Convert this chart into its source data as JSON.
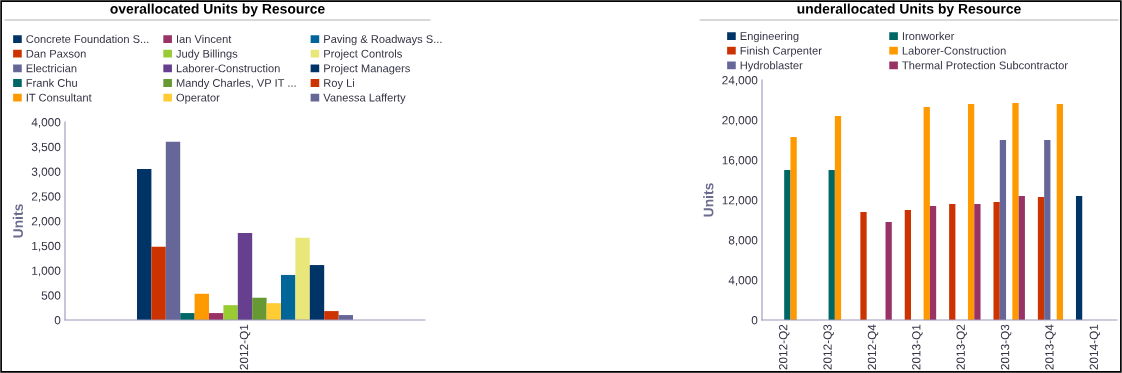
{
  "chart_data": [
    {
      "type": "bar",
      "title": "overallocated Units by Resource",
      "ylabel": "Units",
      "categories": [
        "2012-Q1"
      ],
      "ylim": [
        0,
        4000
      ],
      "yticks": [
        {
          "value": 0,
          "label": "0"
        },
        {
          "value": 500,
          "label": "500"
        },
        {
          "value": 1000,
          "label": "1,000"
        },
        {
          "value": 1500,
          "label": "1,500"
        },
        {
          "value": 2000,
          "label": "2,000"
        },
        {
          "value": 2500,
          "label": "2,500"
        },
        {
          "value": 3000,
          "label": "3,000"
        },
        {
          "value": 3500,
          "label": "3,500"
        },
        {
          "value": 4000,
          "label": "4,000"
        }
      ],
      "grid": false,
      "legend": "top",
      "series": [
        {
          "name": "Concrete Foundation S...",
          "color": "#003366",
          "values": [
            3050
          ]
        },
        {
          "name": "Dan Paxson",
          "color": "#cc3300",
          "values": [
            1480
          ]
        },
        {
          "name": "Electrician",
          "color": "#666699",
          "values": [
            3600
          ]
        },
        {
          "name": "Frank Chu",
          "color": "#006666",
          "values": [
            140
          ]
        },
        {
          "name": "IT Consultant",
          "color": "#ff9900",
          "values": [
            530
          ]
        },
        {
          "name": "Ian Vincent",
          "color": "#993366",
          "values": [
            140
          ]
        },
        {
          "name": "Judy Billings",
          "color": "#99cc33",
          "values": [
            300
          ]
        },
        {
          "name": "Laborer-Construction",
          "color": "#663f8f",
          "values": [
            1760
          ]
        },
        {
          "name": "Mandy Charles, VP IT ...",
          "color": "#669933",
          "values": [
            450
          ]
        },
        {
          "name": "Operator",
          "color": "#ffcc33",
          "values": [
            340
          ]
        },
        {
          "name": "Paving & Roadways S...",
          "color": "#006699",
          "values": [
            910
          ]
        },
        {
          "name": "Project Controls",
          "color": "#eae77a",
          "values": [
            1660
          ]
        },
        {
          "name": "Project Managers",
          "color": "#003366",
          "values": [
            1110
          ]
        },
        {
          "name": "Roy Li",
          "color": "#cc3300",
          "values": [
            180
          ]
        },
        {
          "name": "Vanessa Lafferty",
          "color": "#666699",
          "values": [
            100
          ]
        }
      ]
    },
    {
      "type": "bar",
      "title": "underallocated Units by Resource",
      "ylabel": "Units",
      "categories": [
        "2012-Q2",
        "2012-Q3",
        "2012-Q4",
        "2013-Q1",
        "2013-Q2",
        "2013-Q3",
        "2013-Q4",
        "2014-Q1"
      ],
      "ylim": [
        0,
        24000
      ],
      "yticks": [
        {
          "value": 0,
          "label": "0"
        },
        {
          "value": 4000,
          "label": "4,000"
        },
        {
          "value": 8000,
          "label": "8,000"
        },
        {
          "value": 12000,
          "label": "12,000"
        },
        {
          "value": 16000,
          "label": "16,000"
        },
        {
          "value": 20000,
          "label": "20,000"
        },
        {
          "value": 24000,
          "label": "24,000"
        }
      ],
      "grid": false,
      "legend": "top",
      "series": [
        {
          "name": "Engineering",
          "color": "#003366",
          "values": [
            null,
            null,
            null,
            null,
            null,
            null,
            null,
            12400
          ]
        },
        {
          "name": "Finish Carpenter",
          "color": "#cc3300",
          "values": [
            null,
            null,
            10800,
            11000,
            11600,
            11800,
            12300,
            null
          ]
        },
        {
          "name": "Hydroblaster",
          "color": "#666699",
          "values": [
            null,
            null,
            null,
            null,
            null,
            18000,
            18000,
            null
          ]
        },
        {
          "name": "Ironworker",
          "color": "#006666",
          "values": [
            15000,
            15000,
            null,
            null,
            null,
            null,
            null,
            null
          ]
        },
        {
          "name": "Laborer-Construction",
          "color": "#ff9900",
          "values": [
            18300,
            20400,
            null,
            21300,
            21600,
            21700,
            21600,
            null
          ]
        },
        {
          "name": "Thermal Protection Subcontractor",
          "color": "#993366",
          "values": [
            null,
            null,
            9800,
            11400,
            11600,
            12400,
            null,
            null
          ]
        }
      ]
    }
  ]
}
